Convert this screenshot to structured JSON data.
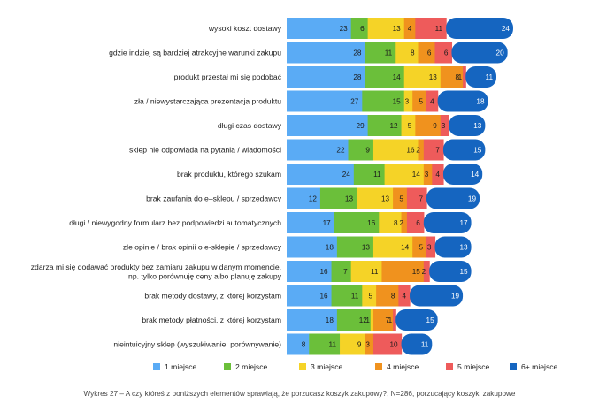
{
  "caption": "Wykres 27 – A czy któreś z poniższych elementów sprawiają, że porzucasz koszyk zakupowy?, N=286, porzucający koszyki zakupowe",
  "chart_data": {
    "type": "bar",
    "orientation": "horizontal",
    "stacked": true,
    "legend_position": "bottom",
    "categories": [
      "wysoki koszt dostawy",
      "gdzie indziej są bardziej atrakcyjne warunki zakupu",
      "produkt przestał mi się podobać",
      "zła / niewystarczająca prezentacja produktu",
      "długi czas dostawy",
      "sklep nie odpowiada na pytania / wiadomości",
      "brak produktu, którego szukam",
      "brak zaufania do e–sklepu / sprzedawcy",
      "długi / niewygodny formularz bez podpowiedzi automatycznych",
      "złe opinie / brak opinii o e-sklepie  / sprzedawcy",
      "zdarza mi się dodawać produkty bez zamiaru zakupu w danym momencie, np. tylko porównuję ceny albo planuję zakupy",
      "brak metody dostawy, z której korzystam",
      "brak metody płatności, z której korzystam",
      "nieintuicyjny sklep (wyszukiwanie, porównywanie)"
    ],
    "series": [
      {
        "name": "1 miejsce",
        "color": "#5aabf5",
        "values": [
          23,
          28,
          28,
          27,
          29,
          22,
          24,
          12,
          17,
          18,
          16,
          16,
          18,
          8
        ]
      },
      {
        "name": "2 miejsce",
        "color": "#6bbf3a",
        "values": [
          6,
          11,
          14,
          15,
          12,
          9,
          11,
          13,
          16,
          13,
          7,
          11,
          12,
          11
        ]
      },
      {
        "name": "3 miejsce",
        "color": "#f5d327",
        "values": [
          13,
          8,
          13,
          3,
          5,
          16,
          14,
          13,
          8,
          14,
          11,
          5,
          1,
          9
        ]
      },
      {
        "name": "4 miejsce",
        "color": "#f0921e",
        "values": [
          4,
          6,
          8,
          5,
          9,
          2,
          3,
          5,
          2,
          5,
          15,
          8,
          7,
          3
        ]
      },
      {
        "name": "5 miejsce",
        "color": "#ee5b5b",
        "values": [
          11,
          6,
          1,
          4,
          3,
          7,
          4,
          7,
          6,
          3,
          2,
          4,
          1,
          10
        ]
      },
      {
        "name": "6+ miejsce",
        "color": "#1565c0",
        "values": [
          24,
          20,
          11,
          18,
          13,
          15,
          14,
          19,
          17,
          13,
          15,
          19,
          15,
          11
        ]
      }
    ]
  }
}
